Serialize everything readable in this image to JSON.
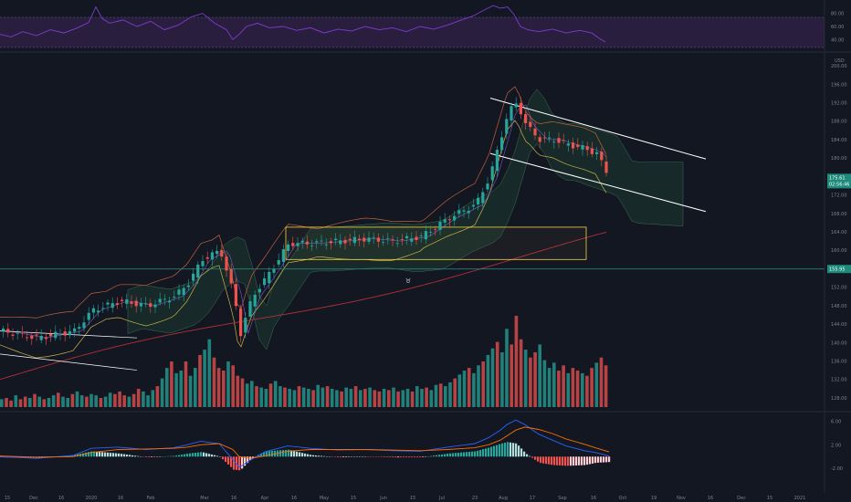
{
  "colors": {
    "background": "#131722",
    "up": "#26a69a",
    "down": "#ef5350",
    "rsi_line": "#7e3bd1",
    "rsi_band": "#2a1e3f",
    "macd_line": "#2962ff",
    "signal_line": "#ff6d00",
    "channel": "#ffffff",
    "box": "#f5d442",
    "ema_long": "#b0303a",
    "hline": "#2e7d74",
    "cloud": "#0f2a22"
  },
  "header": {
    "scale_mode": "USD"
  },
  "chart_data": [
    {
      "type": "line",
      "name_hint": "rsi",
      "yaxis_ticks": [
        "80.00",
        "60.00",
        "40.00"
      ],
      "ylim": [
        25,
        95
      ],
      "bands": [
        70,
        30
      ],
      "x": [
        0,
        12,
        25,
        40,
        55,
        70,
        85,
        97,
        105,
        112,
        120,
        135,
        150,
        165,
        180,
        195,
        210,
        222,
        235,
        248,
        255,
        262,
        270,
        282,
        295,
        310,
        325,
        340,
        355,
        370,
        385,
        400,
        415,
        430,
        445,
        460,
        475,
        490,
        505,
        518,
        530,
        540,
        548,
        556,
        563,
        570,
        578,
        590,
        605,
        620,
        635,
        648,
        656,
        663
      ],
      "values": [
        48,
        44,
        52,
        46,
        55,
        50,
        58,
        66,
        90,
        72,
        65,
        70,
        60,
        68,
        55,
        62,
        75,
        80,
        65,
        55,
        40,
        48,
        60,
        65,
        58,
        60,
        54,
        58,
        50,
        56,
        53,
        60,
        55,
        58,
        52,
        60,
        56,
        62,
        70,
        76,
        85,
        92,
        88,
        90,
        78,
        60,
        55,
        52,
        56,
        50,
        54,
        50,
        42,
        36
      ]
    },
    {
      "type": "candlestick",
      "yaxis_ticks": [
        "200.00",
        "196.00",
        "192.00",
        "188.00",
        "184.00",
        "180.00",
        "176.00",
        "172.00",
        "168.00",
        "164.00",
        "160.00",
        "156.00",
        "152.00",
        "148.00",
        "144.00",
        "140.00",
        "136.00",
        "132.00",
        "128.00"
      ],
      "ylim": [
        126,
        202
      ],
      "xaxis_ticks": [
        "15",
        "Dec",
        "16",
        "2020",
        "16",
        "Feb",
        "Mar",
        "16",
        "Apr",
        "16",
        "May",
        "15",
        "Jun",
        "15",
        "Jul",
        "23",
        "Aug",
        "17",
        "Sep",
        "16",
        "Oct",
        "19",
        "Nov",
        "16",
        "Dec",
        "15",
        "2021"
      ],
      "price_labels": {
        "last": "175.61",
        "countdown": "02:56:46",
        "hline": "155.95"
      },
      "hline": 155.95,
      "anchors": [
        [
          0,
          142.5
        ],
        [
          40,
          141
        ],
        [
          80,
          142.5
        ],
        [
          100,
          147
        ],
        [
          130,
          149
        ],
        [
          160,
          148
        ],
        [
          190,
          150
        ],
        [
          205,
          153
        ],
        [
          220,
          158
        ],
        [
          240,
          160
        ],
        [
          255,
          150
        ],
        [
          262,
          142
        ],
        [
          275,
          150
        ],
        [
          290,
          154
        ],
        [
          315,
          161.5
        ],
        [
          340,
          161.5
        ],
        [
          370,
          162
        ],
        [
          400,
          162.5
        ],
        [
          430,
          162
        ],
        [
          460,
          163
        ],
        [
          490,
          167
        ],
        [
          520,
          170
        ],
        [
          535,
          176
        ],
        [
          548,
          185
        ],
        [
          555,
          190
        ],
        [
          565,
          192
        ],
        [
          575,
          187
        ],
        [
          590,
          184
        ],
        [
          605,
          184
        ],
        [
          620,
          183
        ],
        [
          640,
          182
        ],
        [
          652,
          181
        ],
        [
          660,
          178
        ],
        [
          667,
          175.6
        ]
      ],
      "last_close": 175.61,
      "volume": [
        6,
        7,
        5,
        9,
        6,
        8,
        7,
        10,
        8,
        6,
        7,
        9,
        11,
        8,
        7,
        10,
        12,
        9,
        8,
        10,
        9,
        7,
        8,
        11,
        10,
        12,
        9,
        8,
        10,
        14,
        12,
        9,
        13,
        16,
        22,
        30,
        35,
        26,
        28,
        35,
        24,
        30,
        40,
        44,
        52,
        38,
        30,
        28,
        35,
        32,
        24,
        22,
        18,
        20,
        16,
        15,
        14,
        18,
        20,
        16,
        15,
        14,
        13,
        16,
        15,
        14,
        13,
        17,
        15,
        16,
        14,
        13,
        12,
        15,
        14,
        16,
        13,
        14,
        15,
        13,
        12,
        14,
        13,
        15,
        12,
        13,
        14,
        12,
        16,
        14,
        15,
        13,
        17,
        18,
        16,
        19,
        22,
        25,
        28,
        30,
        26,
        32,
        35,
        40,
        45,
        50,
        42,
        60,
        48,
        70,
        52,
        44,
        38,
        42,
        48,
        36,
        30,
        34,
        28,
        32,
        26,
        30,
        28,
        26,
        24,
        30,
        34,
        38,
        32
      ]
    },
    {
      "type": "line",
      "name_hint": "macd",
      "yaxis_ticks": [
        "6.00",
        "2.00",
        "-2.00"
      ],
      "ylim": [
        -4.6,
        7
      ],
      "x": [
        0,
        40,
        80,
        100,
        130,
        160,
        190,
        205,
        220,
        240,
        255,
        262,
        275,
        290,
        315,
        340,
        370,
        400,
        430,
        460,
        490,
        520,
        535,
        548,
        555,
        565,
        575,
        590,
        605,
        620,
        640,
        652,
        667
      ],
      "macd": [
        0,
        -0.3,
        0.2,
        1.4,
        1.6,
        1.2,
        1.5,
        2.0,
        2.6,
        2.2,
        -0.5,
        -1.8,
        -0.5,
        0.8,
        1.8,
        1.4,
        1.1,
        1.2,
        1.0,
        0.9,
        1.6,
        2.2,
        3.2,
        4.5,
        5.4,
        6.2,
        5.4,
        3.8,
        2.8,
        1.8,
        1.0,
        0.7,
        0.1
      ],
      "signal": [
        0.1,
        -0.1,
        0,
        0.7,
        1.2,
        1.3,
        1.4,
        1.6,
        2.0,
        2.2,
        1.2,
        0,
        -0.3,
        0.1,
        0.9,
        1.2,
        1.2,
        1.2,
        1.1,
        1.0,
        1.2,
        1.5,
        2.0,
        2.8,
        3.5,
        4.5,
        5.0,
        4.6,
        3.9,
        3.0,
        2.1,
        1.5,
        0.8
      ]
    }
  ]
}
